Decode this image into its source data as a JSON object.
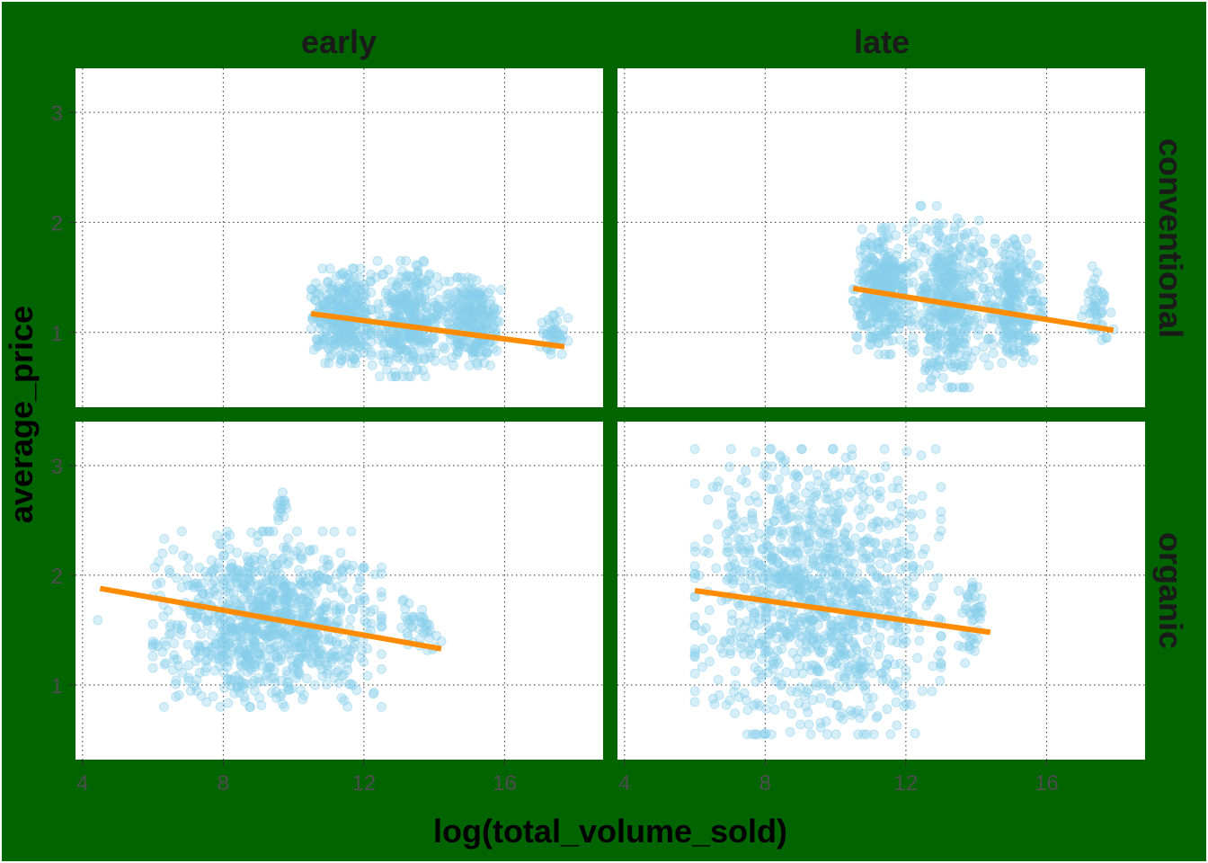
{
  "chart_data": {
    "type": "scatter",
    "facet_columns": [
      "early",
      "late"
    ],
    "facet_rows": [
      "conventional",
      "organic"
    ],
    "xlabel": "log(total_volume_sold)",
    "ylabel": "average_price",
    "xlim": [
      3.8,
      18.8
    ],
    "ylim": [
      0.32,
      3.4
    ],
    "x_ticks": [
      4,
      8,
      12,
      16
    ],
    "y_ticks": [
      1,
      2,
      3
    ],
    "grid": true,
    "colors": {
      "background": "#006400",
      "panel": "#ffffff",
      "points": "#87ceeb",
      "trend": "#ff8c00"
    },
    "panels": [
      {
        "column": "early",
        "row": "conventional",
        "trend": {
          "x": [
            10.5,
            17.7
          ],
          "y": [
            1.17,
            0.87
          ]
        },
        "clusters": [
          {
            "x": [
              10.5,
              12.2
            ],
            "y": [
              0.72,
              1.58
            ],
            "n": 300
          },
          {
            "x": [
              12.2,
              14.3
            ],
            "y": [
              0.6,
              1.65
            ],
            "n": 320
          },
          {
            "x": [
              14.3,
              15.9
            ],
            "y": [
              0.7,
              1.5
            ],
            "n": 240
          },
          {
            "x": [
              17.0,
              17.8
            ],
            "y": [
              0.8,
              1.2
            ],
            "n": 40
          }
        ]
      },
      {
        "column": "late",
        "row": "conventional",
        "trend": {
          "x": [
            10.5,
            17.9
          ],
          "y": [
            1.4,
            1.02
          ]
        },
        "clusters": [
          {
            "x": [
              10.5,
              12.2
            ],
            "y": [
              0.8,
              1.95
            ],
            "n": 330
          },
          {
            "x": [
              12.2,
              14.2
            ],
            "y": [
              0.5,
              2.15
            ],
            "n": 380
          },
          {
            "x": [
              14.2,
              15.9
            ],
            "y": [
              0.7,
              1.85
            ],
            "n": 260
          },
          {
            "x": [
              17.0,
              17.9
            ],
            "y": [
              0.8,
              1.6
            ],
            "n": 45
          }
        ]
      },
      {
        "column": "early",
        "row": "organic",
        "trend": {
          "x": [
            4.5,
            14.2
          ],
          "y": [
            1.88,
            1.33
          ]
        },
        "clusters": [
          {
            "x": [
              6.0,
              12.5
            ],
            "y": [
              0.8,
              2.4
            ],
            "n": 900
          },
          {
            "x": [
              9.5,
              9.8
            ],
            "y": [
              2.5,
              2.78
            ],
            "n": 15
          },
          {
            "x": [
              13.0,
              14.2
            ],
            "y": [
              1.25,
              1.8
            ],
            "n": 40
          },
          {
            "x": [
              4.4,
              4.5
            ],
            "y": [
              1.58,
              1.6
            ],
            "n": 1
          }
        ]
      },
      {
        "column": "late",
        "row": "organic",
        "trend": {
          "x": [
            6.0,
            14.4
          ],
          "y": [
            1.86,
            1.48
          ]
        },
        "clusters": [
          {
            "x": [
              6.0,
              13.0
            ],
            "y": [
              0.55,
              3.15
            ],
            "n": 1050
          },
          {
            "x": [
              13.5,
              14.3
            ],
            "y": [
              1.2,
              2.05
            ],
            "n": 45
          }
        ]
      }
    ]
  }
}
